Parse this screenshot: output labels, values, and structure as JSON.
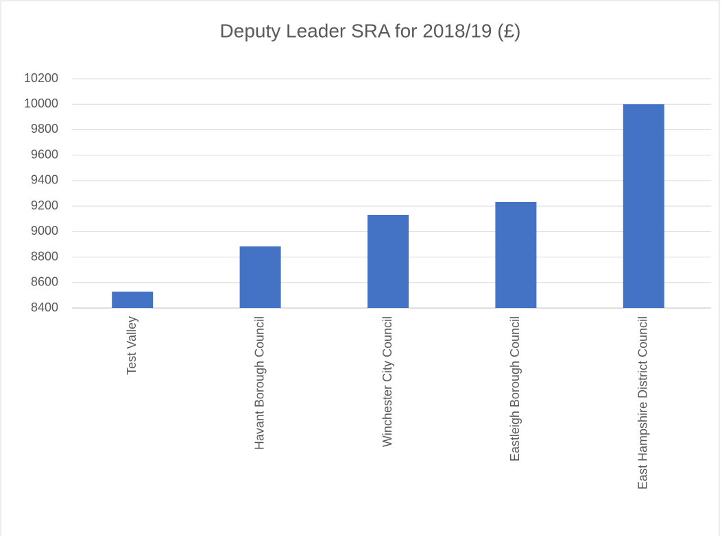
{
  "chart_data": {
    "type": "bar",
    "title": "Deputy Leader SRA for 2018/19 (£)",
    "categories": [
      "Test Valley",
      "Havant Borough Council",
      "Winchester City Council",
      "Eastleigh Borough Council",
      "East Hampshire District Council"
    ],
    "values": [
      8529,
      8884,
      9131,
      9233,
      10000
    ],
    "color": "#4472c4",
    "ylim": [
      8400,
      10200
    ],
    "yticks": [
      8400,
      8600,
      8800,
      9000,
      9200,
      9400,
      9600,
      9800,
      10000,
      10200
    ],
    "grid": true
  }
}
